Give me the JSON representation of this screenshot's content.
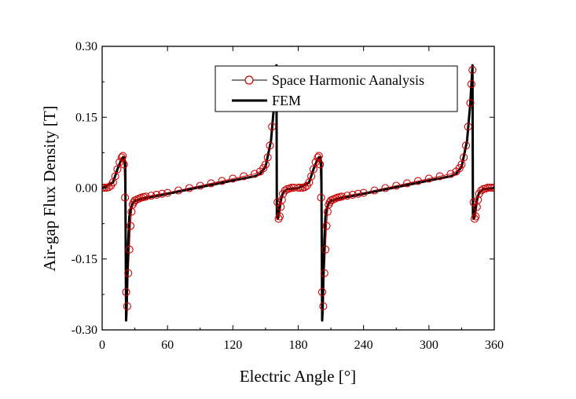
{
  "chart_data": {
    "type": "line",
    "xlabel": "Electric Angle [°]",
    "ylabel": "Air-gap Flux Density [T]",
    "xlim": [
      0,
      360
    ],
    "ylim": [
      -0.3,
      0.3
    ],
    "x_ticks": [
      0,
      60,
      120,
      180,
      240,
      300,
      360
    ],
    "y_ticks": [
      -0.3,
      -0.15,
      0.0,
      0.15,
      0.3
    ],
    "x_tick_labels": [
      "0",
      "60",
      "120",
      "180",
      "240",
      "300",
      "360"
    ],
    "y_tick_labels": [
      "-0.30",
      "-0.15",
      "0.00",
      "0.15",
      "0.30"
    ],
    "grid": false,
    "legend_position": "top-right",
    "colors": {
      "analysis": "#cc0000",
      "fem": "#000000",
      "axes": "#000000"
    },
    "series": [
      {
        "name": "Space Harmonic Aanalysis",
        "style": "open-circle-line",
        "x": [
          0,
          2,
          4,
          6,
          8,
          10,
          12,
          14,
          16,
          18,
          19,
          20,
          21,
          22,
          23,
          24,
          25,
          26,
          27,
          28,
          29,
          30,
          32,
          34,
          36,
          38,
          40,
          45,
          50,
          55,
          60,
          70,
          80,
          90,
          100,
          110,
          120,
          130,
          140,
          145,
          148,
          150,
          152,
          154,
          156,
          158,
          159,
          160,
          161,
          162,
          163,
          164,
          165,
          166,
          168,
          170,
          172,
          174,
          176,
          180,
          182,
          184,
          186,
          188,
          190,
          192,
          194,
          196,
          198,
          199,
          200,
          201,
          202,
          203,
          204,
          205,
          206,
          207,
          208,
          209,
          210,
          212,
          214,
          216,
          218,
          220,
          225,
          230,
          235,
          240,
          250,
          260,
          270,
          280,
          290,
          300,
          310,
          320,
          325,
          328,
          330,
          332,
          334,
          336,
          338,
          339,
          340,
          341,
          342,
          343,
          344,
          345,
          346,
          348,
          350,
          352,
          354,
          356,
          358,
          360
        ],
        "y": [
          0.001,
          0.001,
          0.001,
          0.002,
          0.005,
          0.012,
          0.025,
          0.04,
          0.055,
          0.065,
          0.068,
          0.05,
          -0.02,
          -0.22,
          -0.25,
          -0.18,
          -0.13,
          -0.08,
          -0.05,
          -0.035,
          -0.03,
          -0.026,
          -0.024,
          -0.022,
          -0.02,
          -0.019,
          -0.018,
          -0.016,
          -0.014,
          -0.012,
          -0.01,
          -0.005,
          0.0,
          0.005,
          0.01,
          0.015,
          0.02,
          0.025,
          0.03,
          0.035,
          0.042,
          0.05,
          0.065,
          0.09,
          0.13,
          0.18,
          0.22,
          0.24,
          -0.03,
          -0.065,
          -0.06,
          -0.04,
          -0.025,
          -0.012,
          -0.005,
          -0.002,
          -0.001,
          0.001,
          0.001,
          0.001,
          0.001,
          0.001,
          0.002,
          0.005,
          0.012,
          0.025,
          0.04,
          0.055,
          0.065,
          0.068,
          0.05,
          -0.02,
          -0.22,
          -0.25,
          -0.18,
          -0.13,
          -0.08,
          -0.05,
          -0.035,
          -0.03,
          -0.026,
          -0.024,
          -0.022,
          -0.02,
          -0.019,
          -0.018,
          -0.016,
          -0.014,
          -0.012,
          -0.01,
          -0.005,
          0.0,
          0.005,
          0.01,
          0.015,
          0.02,
          0.025,
          0.03,
          0.035,
          0.042,
          0.05,
          0.065,
          0.09,
          0.13,
          0.18,
          0.22,
          0.25,
          -0.03,
          -0.065,
          -0.06,
          -0.04,
          -0.025,
          -0.012,
          -0.005,
          -0.002,
          -0.001,
          0.001,
          0.001,
          0.001,
          0.001
        ]
      },
      {
        "name": "FEM",
        "style": "thick-line",
        "x": [
          0,
          10,
          14,
          18,
          20,
          21.2,
          22,
          22.4,
          23,
          24,
          25,
          26,
          28,
          30,
          40,
          60,
          90,
          120,
          140,
          145,
          150,
          155,
          158,
          160,
          160.4,
          161,
          162,
          164,
          166,
          170,
          180,
          190,
          194,
          198,
          200,
          201.2,
          202,
          202.4,
          203,
          204,
          205,
          206,
          208,
          210,
          220,
          240,
          270,
          300,
          320,
          325,
          330,
          335,
          338,
          340,
          340.4,
          341,
          342,
          344,
          346,
          350,
          360
        ],
        "y": [
          0,
          0.012,
          0.04,
          0.062,
          0.065,
          0.055,
          -0.28,
          -0.26,
          -0.2,
          -0.11,
          -0.06,
          -0.045,
          -0.032,
          -0.027,
          -0.021,
          -0.012,
          0.002,
          0.016,
          0.025,
          0.03,
          0.045,
          0.1,
          0.18,
          0.26,
          -0.06,
          -0.065,
          -0.05,
          -0.025,
          -0.01,
          -0.002,
          0,
          0.012,
          0.04,
          0.062,
          0.065,
          0.055,
          -0.28,
          -0.26,
          -0.2,
          -0.11,
          -0.06,
          -0.045,
          -0.032,
          -0.027,
          -0.021,
          -0.012,
          0.002,
          0.016,
          0.025,
          0.03,
          0.045,
          0.1,
          0.18,
          0.26,
          -0.06,
          -0.065,
          -0.05,
          -0.025,
          -0.01,
          -0.002,
          0
        ]
      }
    ]
  }
}
